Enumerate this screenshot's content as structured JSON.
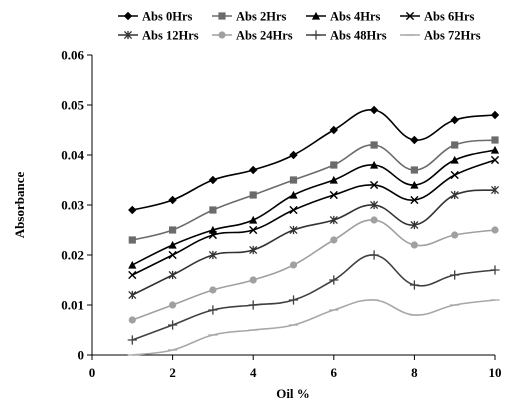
{
  "chart_data": {
    "type": "line",
    "title": "",
    "xlabel": "Oil %",
    "ylabel": "Absorbance",
    "xlim": [
      0,
      10
    ],
    "ylim": [
      0,
      0.06
    ],
    "x_ticks": [
      "0",
      "2",
      "4",
      "6",
      "8",
      "10"
    ],
    "y_ticks": [
      "0",
      "0.01",
      "0.02",
      "0.03",
      "0.04",
      "0.05",
      "0.06"
    ],
    "grid": false,
    "legend_position": "top",
    "x": [
      1,
      2,
      3,
      4,
      5,
      6,
      7,
      8,
      9,
      10
    ],
    "series": [
      {
        "name": "Abs 0Hrs",
        "color": "#000000",
        "marker": "diamond",
        "values": [
          0.029,
          0.031,
          0.035,
          0.037,
          0.04,
          0.045,
          0.049,
          0.043,
          0.047,
          0.048
        ]
      },
      {
        "name": "Abs 2Hrs",
        "color": "#6b6b6b",
        "marker": "square",
        "values": [
          0.023,
          0.025,
          0.029,
          0.032,
          0.035,
          0.038,
          0.042,
          0.037,
          0.042,
          0.043
        ]
      },
      {
        "name": "Abs 4Hrs",
        "color": "#000000",
        "marker": "triangle",
        "values": [
          0.018,
          0.022,
          0.025,
          0.027,
          0.032,
          0.035,
          0.038,
          0.034,
          0.039,
          0.041
        ]
      },
      {
        "name": "Abs 6Hrs",
        "color": "#000000",
        "marker": "x",
        "values": [
          0.016,
          0.02,
          0.024,
          0.025,
          0.029,
          0.032,
          0.034,
          0.031,
          0.036,
          0.039
        ]
      },
      {
        "name": "Abs 12Hrs",
        "color": "#333333",
        "marker": "star",
        "values": [
          0.012,
          0.016,
          0.02,
          0.021,
          0.025,
          0.027,
          0.03,
          0.026,
          0.032,
          0.033
        ]
      },
      {
        "name": "Abs 24Hrs",
        "color": "#a0a0a0",
        "marker": "circle",
        "values": [
          0.007,
          0.01,
          0.013,
          0.015,
          0.018,
          0.023,
          0.027,
          0.022,
          0.024,
          0.025
        ]
      },
      {
        "name": "Abs 48Hrs",
        "color": "#404040",
        "marker": "plus",
        "values": [
          0.003,
          0.006,
          0.009,
          0.01,
          0.011,
          0.015,
          0.02,
          0.014,
          0.016,
          0.017
        ]
      },
      {
        "name": "Abs 72Hrs",
        "color": "#a8a8a8",
        "marker": "dash",
        "values": [
          0.0,
          0.001,
          0.004,
          0.005,
          0.006,
          0.009,
          0.011,
          0.008,
          0.01,
          0.011
        ]
      }
    ]
  }
}
